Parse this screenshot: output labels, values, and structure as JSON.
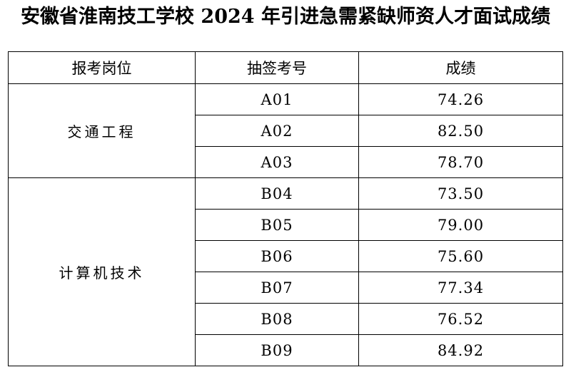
{
  "title": "安徽省淮南技工学校 2024 年引进急需紧缺师资人才面试成绩",
  "table": {
    "headers": [
      "报考岗位",
      "抽签考号",
      "成绩"
    ],
    "groups": [
      {
        "position": "交通工程",
        "rows": [
          {
            "ticket": "A01",
            "score": "74.26"
          },
          {
            "ticket": "A02",
            "score": "82.50"
          },
          {
            "ticket": "A03",
            "score": "78.70"
          }
        ]
      },
      {
        "position": "计算机技术",
        "rows": [
          {
            "ticket": "B04",
            "score": "73.50"
          },
          {
            "ticket": "B05",
            "score": "79.00"
          },
          {
            "ticket": "B06",
            "score": "75.60"
          },
          {
            "ticket": "B07",
            "score": "77.34"
          },
          {
            "ticket": "B08",
            "score": "76.52"
          },
          {
            "ticket": "B09",
            "score": "84.92"
          }
        ]
      }
    ]
  }
}
